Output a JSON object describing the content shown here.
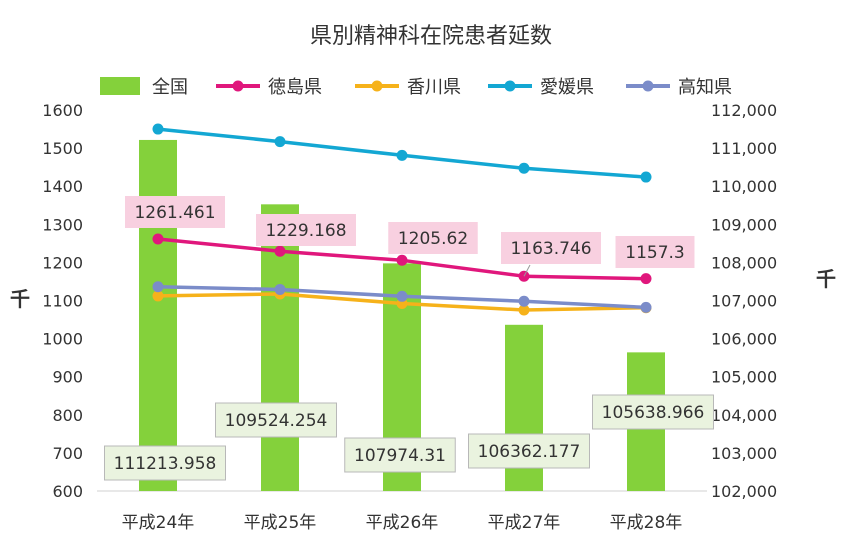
{
  "chart_data": {
    "type": "bar+line",
    "title": "県別精神科在院患者延数",
    "categories": [
      "平成24年",
      "平成25年",
      "平成26年",
      "平成27年",
      "平成28年"
    ],
    "left_axis": {
      "unit_label": "千",
      "range": [
        600,
        1600
      ],
      "ticks": [
        "600",
        "700",
        "800",
        "900",
        "1000",
        "1100",
        "1200",
        "1300",
        "1400",
        "1500",
        "1600"
      ]
    },
    "right_axis": {
      "unit_label": "千",
      "range": [
        102000,
        112000
      ],
      "ticks": [
        "102,000",
        "103,000",
        "104,000",
        "105,000",
        "106,000",
        "107,000",
        "108,000",
        "109,000",
        "110,000",
        "111,000",
        "112,000"
      ]
    },
    "legend_position": "top",
    "series": [
      {
        "name": "全国",
        "type": "bar",
        "axis": "right",
        "color": "#84d13b",
        "values": [
          111213.958,
          109524.254,
          107974.31,
          106362.177,
          105638.966
        ],
        "data_labels": [
          "111213.958",
          "109524.254",
          "107974.31",
          "106362.177",
          "105638.966"
        ]
      },
      {
        "name": "徳島県",
        "type": "line",
        "axis": "left",
        "color": "#e0177c",
        "values": [
          1261.461,
          1229.168,
          1205.62,
          1163.746,
          1157.3
        ],
        "data_labels": [
          "1261.461",
          "1229.168",
          "1205.62",
          "1163.746",
          "1157.3"
        ]
      },
      {
        "name": "香川県",
        "type": "line",
        "axis": "left",
        "color": "#f6b21a",
        "values": [
          1112,
          1117,
          1092,
          1075,
          1081
        ]
      },
      {
        "name": "愛媛県",
        "type": "line",
        "axis": "left",
        "color": "#13a7d3",
        "values": [
          1550,
          1517,
          1481,
          1447,
          1424
        ]
      },
      {
        "name": "高知県",
        "type": "line",
        "axis": "left",
        "color": "#7b8cc9",
        "values": [
          1136,
          1129,
          1111,
          1098,
          1082
        ]
      }
    ]
  }
}
